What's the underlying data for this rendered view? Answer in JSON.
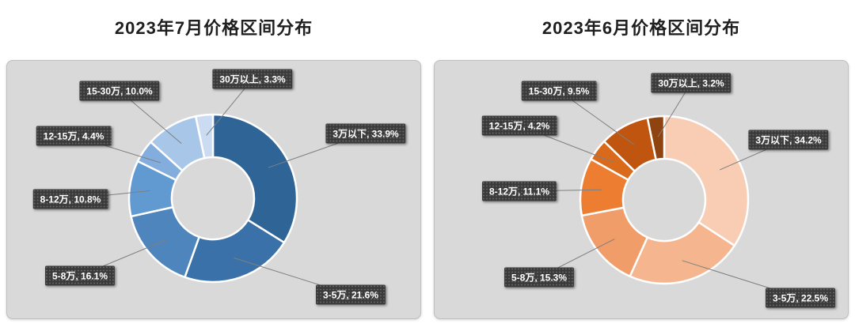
{
  "styles": {
    "page_bg": "#ffffff",
    "panel_bg": "#d9d9d9",
    "title_color": "#1f1f1f",
    "label_bg": "#3a3a3a",
    "label_text": "#ffffff",
    "leader_line": "#7f7f7f",
    "slice_border": "#ffffff"
  },
  "chart_data": [
    {
      "type": "donut",
      "title": "2023年7月价格区间分布",
      "categories": [
        "3万以下",
        "3-5万",
        "5-8万",
        "8-12万",
        "12-15万",
        "15-30万",
        "30万以上"
      ],
      "values": [
        33.9,
        21.6,
        16.1,
        10.8,
        4.4,
        10.0,
        3.3
      ],
      "unit": "%",
      "colors": [
        "#2f6497",
        "#3a71a8",
        "#4d85bc",
        "#619ad1",
        "#82addc",
        "#a7c6e8",
        "#cbdcf2"
      ],
      "label_template": "{category}, {value}%",
      "start_angle_deg": 0,
      "direction": "clockwise",
      "legend_position": "none"
    },
    {
      "type": "donut",
      "title": "2023年6月价格区间分布",
      "categories": [
        "3万以下",
        "3-5万",
        "5-8万",
        "8-12万",
        "12-15万",
        "15-30万",
        "30万以上"
      ],
      "values": [
        34.2,
        22.5,
        15.3,
        11.1,
        4.2,
        9.5,
        3.2
      ],
      "unit": "%",
      "colors": [
        "#f8cdb4",
        "#f5b68f",
        "#f19d69",
        "#ed7d31",
        "#d96a1b",
        "#c05510",
        "#8f430e"
      ],
      "label_template": "{category}, {value}%",
      "start_angle_deg": 0,
      "direction": "clockwise",
      "legend_position": "none"
    }
  ]
}
